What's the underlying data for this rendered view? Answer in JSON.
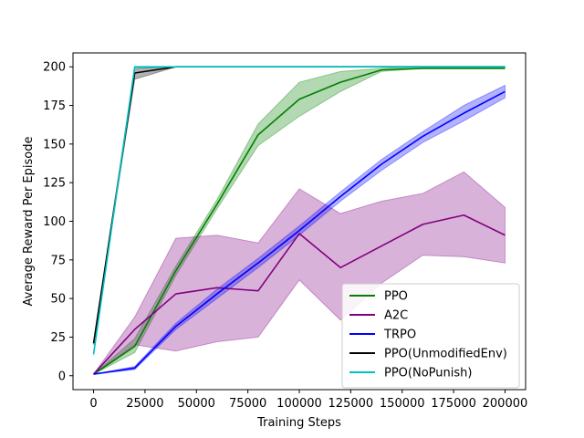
{
  "chart_data": {
    "type": "line",
    "title": "",
    "xlabel": "Training Steps",
    "ylabel": "Average Reward Per Episode",
    "xlim": [
      -10000,
      210000
    ],
    "ylim": [
      -9,
      209
    ],
    "xticks": [
      0,
      25000,
      50000,
      75000,
      100000,
      125000,
      150000,
      175000,
      200000
    ],
    "yticks": [
      0,
      25,
      50,
      75,
      100,
      125,
      150,
      175,
      200
    ],
    "grid": false,
    "legend_position": "lower-right",
    "series": [
      {
        "name": "PPO",
        "color": "#008000",
        "x": [
          0,
          20000,
          40000,
          60000,
          80000,
          100000,
          120000,
          140000,
          160000,
          180000,
          200000
        ],
        "values": [
          1,
          19,
          68,
          111,
          156,
          179,
          190,
          198,
          199,
          199,
          199
        ],
        "lower": [
          1,
          15,
          65,
          108,
          149,
          168,
          184,
          197,
          199,
          199,
          199
        ],
        "upper": [
          1,
          24,
          71,
          114,
          163,
          190,
          197,
          199,
          200,
          200,
          200
        ]
      },
      {
        "name": "A2C",
        "color": "#800080",
        "x": [
          0,
          20000,
          40000,
          60000,
          80000,
          100000,
          120000,
          140000,
          160000,
          180000,
          200000
        ],
        "values": [
          1,
          30,
          53,
          57,
          55,
          92,
          70,
          84,
          98,
          104,
          91
        ],
        "lower": [
          1,
          20,
          16,
          22,
          25,
          62,
          36,
          60,
          78,
          77,
          73
        ],
        "upper": [
          1,
          38,
          89,
          91,
          86,
          121,
          105,
          113,
          118,
          132,
          109
        ]
      },
      {
        "name": "TRPO",
        "color": "#0000ff",
        "x": [
          0,
          20000,
          40000,
          60000,
          80000,
          100000,
          120000,
          140000,
          160000,
          180000,
          200000
        ],
        "values": [
          1,
          5,
          32,
          53,
          73,
          94,
          116,
          137,
          155,
          170,
          184
        ],
        "lower": [
          1,
          4,
          30,
          50,
          70,
          91,
          113,
          133,
          151,
          165,
          180
        ],
        "upper": [
          1,
          6,
          34,
          56,
          76,
          97,
          119,
          140,
          158,
          175,
          188
        ]
      },
      {
        "name": "PPO(UnmodifiedEnv)",
        "color": "#000000",
        "x": [
          0,
          20000,
          40000,
          60000,
          80000,
          100000,
          120000,
          140000,
          160000,
          180000,
          200000
        ],
        "values": [
          21,
          196,
          200,
          200,
          200,
          200,
          200,
          200,
          200,
          200,
          200
        ],
        "lower": [
          20,
          192,
          200,
          200,
          200,
          200,
          200,
          200,
          200,
          200,
          200
        ],
        "upper": [
          22,
          199,
          200,
          200,
          200,
          200,
          200,
          200,
          200,
          200,
          200
        ]
      },
      {
        "name": "PPO(NoPunish)",
        "color": "#00bfbf",
        "x": [
          0,
          20000,
          40000,
          60000,
          80000,
          100000,
          120000,
          140000,
          160000,
          180000,
          200000
        ],
        "values": [
          14,
          200,
          200,
          200,
          200,
          200,
          200,
          200,
          200,
          200,
          200
        ],
        "lower": [
          13,
          199,
          200,
          200,
          200,
          200,
          200,
          200,
          200,
          200,
          200
        ],
        "upper": [
          15,
          200,
          200,
          200,
          200,
          200,
          200,
          200,
          200,
          200,
          200
        ]
      }
    ]
  }
}
